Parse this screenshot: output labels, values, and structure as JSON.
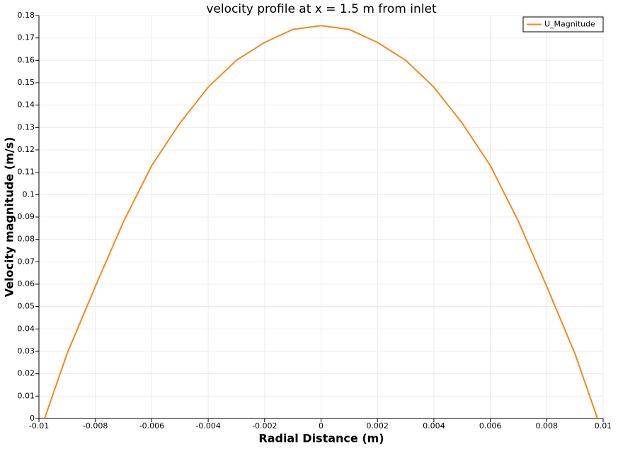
{
  "chart_data": {
    "type": "line",
    "title": "velocity profile at x = 1.5 m from inlet",
    "x_label": "Radial Distance (m)",
    "y_label": "Velocity magnitude (m/s)",
    "x": [
      -0.0098,
      -0.009,
      -0.008,
      -0.007,
      -0.006,
      -0.005,
      -0.004,
      -0.003,
      -0.002,
      -0.001,
      0,
      0.001,
      0.002,
      0.003,
      0.004,
      0.005,
      0.006,
      0.007,
      0.008,
      0.009,
      0.0098
    ],
    "series": [
      {
        "name": "U_Magnitude",
        "color": "#f28a1b",
        "values": [
          0,
          0.029,
          0.059,
          0.088,
          0.113,
          0.132,
          0.148,
          0.16,
          0.168,
          0.1738,
          0.1755,
          0.1738,
          0.168,
          0.16,
          0.148,
          0.132,
          0.113,
          0.088,
          0.059,
          0.029,
          0
        ]
      }
    ],
    "xlim": [
      -0.01,
      0.01
    ],
    "xticks": [
      -0.01,
      -0.008,
      -0.006,
      -0.004,
      -0.002,
      0,
      0.002,
      0.004,
      0.006,
      0.008,
      0.01
    ],
    "ylim": [
      0,
      0.18
    ],
    "yticks": [
      0,
      0.01,
      0.02,
      0.03,
      0.04,
      0.05,
      0.06,
      0.07,
      0.08,
      0.09,
      0.1,
      0.11,
      0.12,
      0.13,
      0.14,
      0.15,
      0.16,
      0.17,
      0.18
    ],
    "grid": true,
    "legend": "upper-right"
  }
}
